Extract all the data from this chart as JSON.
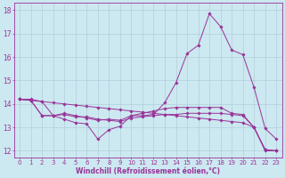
{
  "background_color": "#cce8f0",
  "grid_color": "#aac8d8",
  "line_color": "#993399",
  "spine_color": "#993399",
  "xlim": [
    -0.5,
    23.5
  ],
  "ylim": [
    11.7,
    18.3
  ],
  "yticks": [
    12,
    13,
    14,
    15,
    16,
    17,
    18
  ],
  "xticks": [
    0,
    1,
    2,
    3,
    4,
    5,
    6,
    7,
    8,
    9,
    10,
    11,
    12,
    13,
    14,
    15,
    16,
    17,
    18,
    19,
    20,
    21,
    22,
    23
  ],
  "xlabel": "Windchill (Refroidissement éolien,°C)",
  "line1_x": [
    0,
    1,
    2,
    3,
    4,
    5,
    6,
    7,
    8,
    9,
    10,
    11,
    12,
    13,
    14,
    15,
    16,
    17,
    18,
    19,
    20,
    21,
    22,
    23
  ],
  "line1_y": [
    14.2,
    14.2,
    14.1,
    13.5,
    13.35,
    13.2,
    13.15,
    12.5,
    12.9,
    13.05,
    13.5,
    13.5,
    13.55,
    14.05,
    14.9,
    16.15,
    16.5,
    17.85,
    17.3,
    16.3,
    16.1,
    14.7,
    12.95,
    12.5
  ],
  "line2_x": [
    0,
    1,
    2,
    3,
    4,
    5,
    6,
    7,
    8,
    9,
    10,
    11,
    12,
    13,
    14,
    15,
    16,
    17,
    18,
    19,
    20,
    21,
    22,
    23
  ],
  "line2_y": [
    14.2,
    14.15,
    13.5,
    13.5,
    13.6,
    13.5,
    13.4,
    13.3,
    13.35,
    13.3,
    13.5,
    13.6,
    13.7,
    13.8,
    13.85,
    13.85,
    13.85,
    13.85,
    13.85,
    13.6,
    13.55,
    13.0,
    12.0,
    12.0
  ],
  "line3_x": [
    0,
    1,
    2,
    3,
    4,
    5,
    6,
    7,
    8,
    9,
    10,
    11,
    12,
    13,
    14,
    15,
    16,
    17,
    18,
    19,
    20,
    21,
    22,
    23
  ],
  "line3_y": [
    14.2,
    14.15,
    13.5,
    13.5,
    13.55,
    13.45,
    13.45,
    13.35,
    13.3,
    13.25,
    13.4,
    13.45,
    13.5,
    13.55,
    13.55,
    13.6,
    13.6,
    13.6,
    13.6,
    13.55,
    13.5,
    13.0,
    12.05,
    12.0
  ],
  "line4_x": [
    0,
    1,
    2,
    3,
    4,
    5,
    6,
    7,
    8,
    9,
    10,
    11,
    12,
    13,
    14,
    15,
    16,
    17,
    18,
    19,
    20,
    21,
    22,
    23
  ],
  "line4_y": [
    14.2,
    14.15,
    14.1,
    14.05,
    14.0,
    13.95,
    13.9,
    13.85,
    13.8,
    13.75,
    13.7,
    13.65,
    13.6,
    13.55,
    13.5,
    13.45,
    13.4,
    13.35,
    13.3,
    13.25,
    13.2,
    13.0,
    12.05,
    12.0
  ],
  "tick_fontsize": 5.0,
  "xlabel_fontsize": 5.5,
  "marker_size": 1.8,
  "line_width": 0.7
}
